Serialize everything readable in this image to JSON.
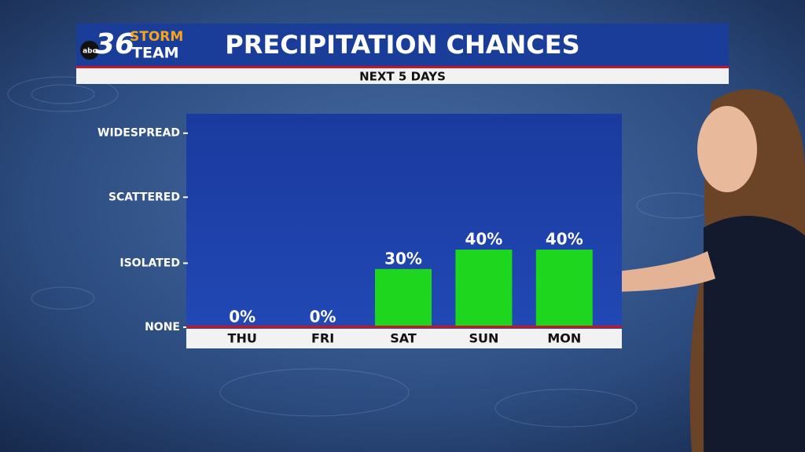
{
  "logo": {
    "network": "abc",
    "number": "36",
    "line1": "STORM",
    "line2": "TEAM"
  },
  "chart_data": {
    "type": "bar",
    "title": "PRECIPITATION CHANCES",
    "subtitle": "NEXT 5 DAYS",
    "categories": [
      "THU",
      "FRI",
      "SAT",
      "SUN",
      "MON"
    ],
    "values": [
      0,
      0,
      30,
      40,
      40
    ],
    "value_labels": [
      "0%",
      "0%",
      "30%",
      "40%",
      "40%"
    ],
    "color": "#1fd61f",
    "ylim": [
      0,
      110
    ],
    "yticks": [
      {
        "value": 0,
        "label": "NONE"
      },
      {
        "value": 33,
        "label": "ISOLATED"
      },
      {
        "value": 67,
        "label": "SCATTERED"
      },
      {
        "value": 100,
        "label": "WIDESPREAD"
      }
    ]
  }
}
